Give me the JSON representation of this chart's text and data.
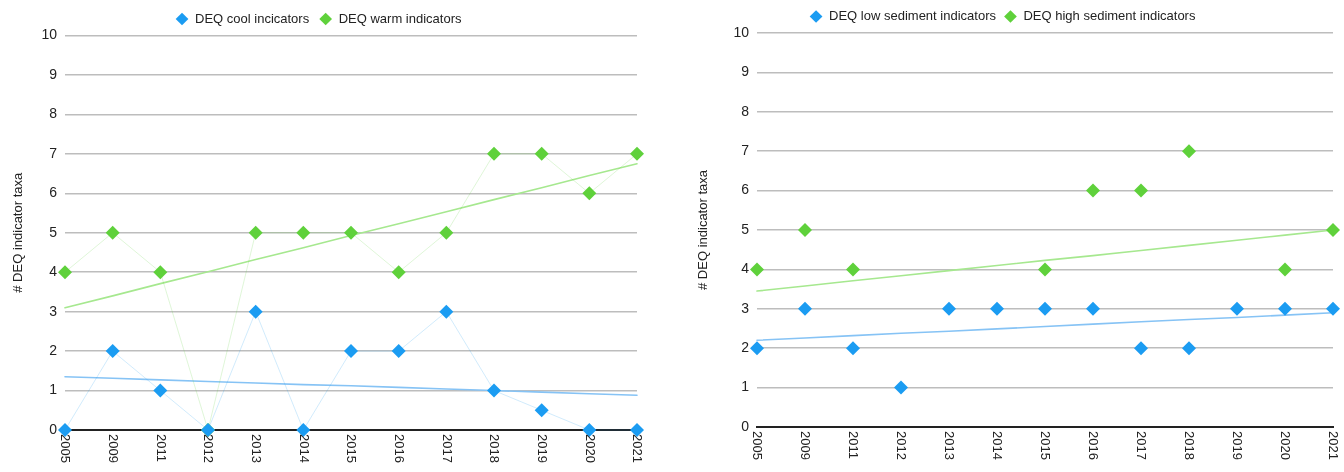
{
  "chart_data": [
    {
      "type": "line",
      "categories": [
        "2005",
        "2009",
        "2011",
        "2012",
        "2013",
        "2014",
        "2015",
        "2016",
        "2017",
        "2018",
        "2019",
        "2020",
        "2021"
      ],
      "ylabel": "# DEQ indicator taxa",
      "ylim": [
        0,
        10
      ],
      "yticks": [
        0,
        1,
        2,
        3,
        4,
        5,
        6,
        7,
        8,
        9,
        10
      ],
      "grid": "y",
      "legend": "top",
      "marker": "diamond",
      "series": [
        {
          "name": "DEQ cool incicators",
          "color": "#1b9cf2",
          "values": [
            0,
            2,
            1,
            0,
            3,
            0,
            2,
            2,
            3,
            1,
            0.5,
            0,
            0
          ]
        },
        {
          "name": "DEQ warm indicators",
          "color": "#5fd13b",
          "values": [
            4,
            5,
            4,
            0,
            5,
            5,
            5,
            4,
            5,
            7,
            7,
            6,
            7
          ]
        },
        {
          "type": "line",
          "marker": "none",
          "color": "#86c3f5",
          "values": [
            1.35,
            1.31,
            1.27,
            1.23,
            1.19,
            1.15,
            1.12,
            1.08,
            1.04,
            1.0,
            0.96,
            0.92,
            0.88
          ]
        },
        {
          "type": "line",
          "marker": "none",
          "color": "#a6e88f",
          "values": [
            3.1,
            3.4,
            3.71,
            4.01,
            4.32,
            4.62,
            4.93,
            5.23,
            5.53,
            5.84,
            6.14,
            6.45,
            6.75
          ]
        }
      ]
    },
    {
      "type": "scatter",
      "categories": [
        "2005",
        "2009",
        "2011",
        "2012",
        "2013",
        "2014",
        "2015",
        "2016",
        "2017",
        "2018",
        "2019",
        "2020",
        "2021"
      ],
      "ylabel": "# DEQ indicator taxa",
      "ylim": [
        0,
        10
      ],
      "yticks": [
        0,
        1,
        2,
        3,
        4,
        5,
        6,
        7,
        8,
        9,
        10
      ],
      "grid": "y",
      "legend": "top",
      "marker": "diamond",
      "series": [
        {
          "name": "DEQ low sediment indicators",
          "color": "#1b9cf2",
          "values": [
            2,
            3,
            2,
            1,
            3,
            3,
            3,
            3,
            2,
            2,
            3,
            3,
            3
          ]
        },
        {
          "name": "DEQ high sediment indicators",
          "color": "#5fd13b",
          "values": [
            4,
            5,
            4,
            null,
            null,
            null,
            4,
            6,
            6,
            7,
            null,
            4,
            5
          ]
        },
        {
          "type": "line",
          "marker": "none",
          "color": "#86c3f5",
          "values": [
            2.2,
            2.26,
            2.32,
            2.38,
            2.43,
            2.49,
            2.55,
            2.61,
            2.67,
            2.73,
            2.78,
            2.84,
            2.9
          ]
        },
        {
          "type": "line",
          "marker": "none",
          "color": "#a6e88f",
          "values": [
            3.45,
            3.58,
            3.71,
            3.84,
            3.97,
            4.1,
            4.23,
            4.35,
            4.48,
            4.61,
            4.74,
            4.87,
            5.0
          ]
        }
      ]
    }
  ]
}
